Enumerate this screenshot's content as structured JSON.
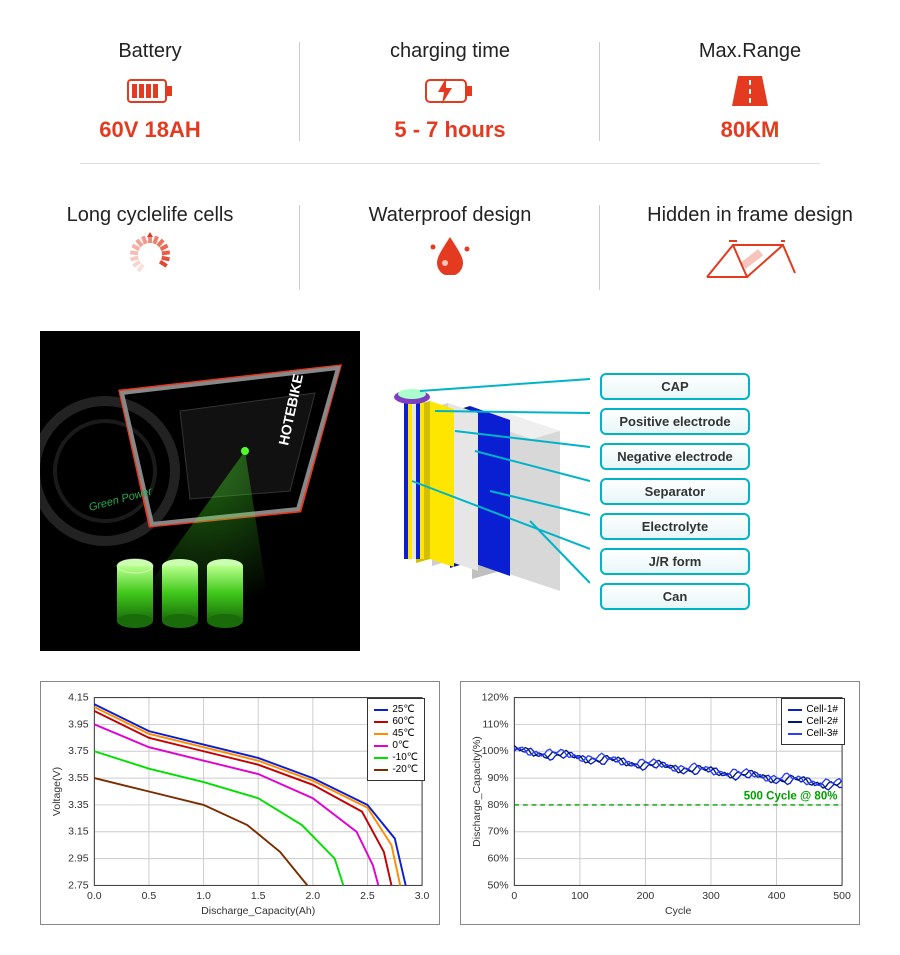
{
  "spec_top": [
    {
      "title": "Battery",
      "value": "60V 18AH",
      "icon": "battery"
    },
    {
      "title": "charging time",
      "value": "5 - 7 hours",
      "icon": "charge"
    },
    {
      "title": "Max.Range",
      "value": "80KM",
      "icon": "road"
    }
  ],
  "spec_bottom": [
    {
      "title": "Long cyclelife cells",
      "icon": "cycle"
    },
    {
      "title": "Waterproof design",
      "icon": "water"
    },
    {
      "title": "Hidden in frame design",
      "icon": "frame"
    }
  ],
  "accent": "#e43a1f",
  "layers": {
    "labels": [
      "CAP",
      "Positive electrode",
      "Negative electrode",
      "Separator",
      "Electrolyte",
      "J/R form",
      "Can"
    ],
    "label_border": "#00b4c8",
    "sheets": [
      {
        "color": "#ffe600"
      },
      {
        "color": "#e6e6e6"
      },
      {
        "color": "#0a1fd1"
      },
      {
        "color": "#cfcfcf"
      }
    ]
  },
  "bike": {
    "brand": "HOTEBIKE",
    "subtext": "Green Power",
    "frame_color": "#e43a1f",
    "glow": "#4eff2a"
  },
  "chart1": {
    "xlabel": "Discharge_Capacity(Ah)",
    "ylabel": "Voltage(V)",
    "xlim": [
      0,
      3.0
    ],
    "xtick_step": 0.5,
    "ylim": [
      2.75,
      4.15
    ],
    "yticks": [
      2.75,
      2.95,
      3.15,
      3.35,
      3.55,
      3.75,
      3.95,
      4.15
    ],
    "grid_color": "#cccccc",
    "series": [
      {
        "name": "25℃",
        "color": "#0a1fd1",
        "pts": [
          [
            0,
            4.1
          ],
          [
            0.5,
            3.9
          ],
          [
            1.0,
            3.8
          ],
          [
            1.5,
            3.7
          ],
          [
            2.0,
            3.55
          ],
          [
            2.5,
            3.35
          ],
          [
            2.75,
            3.1
          ],
          [
            2.85,
            2.75
          ]
        ]
      },
      {
        "name": "60℃",
        "color": "#c40000",
        "pts": [
          [
            0,
            4.05
          ],
          [
            0.5,
            3.85
          ],
          [
            1.0,
            3.75
          ],
          [
            1.5,
            3.65
          ],
          [
            2.0,
            3.5
          ],
          [
            2.45,
            3.3
          ],
          [
            2.65,
            3.0
          ],
          [
            2.72,
            2.75
          ]
        ]
      },
      {
        "name": "45℃",
        "color": "#ff8c00",
        "pts": [
          [
            0,
            4.08
          ],
          [
            0.5,
            3.88
          ],
          [
            1.0,
            3.78
          ],
          [
            1.5,
            3.68
          ],
          [
            2.0,
            3.53
          ],
          [
            2.5,
            3.33
          ],
          [
            2.72,
            3.05
          ],
          [
            2.8,
            2.75
          ]
        ]
      },
      {
        "name": "0℃",
        "color": "#e000d6",
        "pts": [
          [
            0,
            3.95
          ],
          [
            0.5,
            3.78
          ],
          [
            1.0,
            3.68
          ],
          [
            1.5,
            3.58
          ],
          [
            2.0,
            3.4
          ],
          [
            2.4,
            3.15
          ],
          [
            2.55,
            2.9
          ],
          [
            2.6,
            2.75
          ]
        ]
      },
      {
        "name": "-10℃",
        "color": "#00e000",
        "pts": [
          [
            0,
            3.75
          ],
          [
            0.5,
            3.62
          ],
          [
            1.0,
            3.52
          ],
          [
            1.5,
            3.4
          ],
          [
            1.9,
            3.2
          ],
          [
            2.2,
            2.95
          ],
          [
            2.28,
            2.75
          ]
        ]
      },
      {
        "name": "-20℃",
        "color": "#7a2e00",
        "pts": [
          [
            0,
            3.55
          ],
          [
            0.5,
            3.45
          ],
          [
            1.0,
            3.35
          ],
          [
            1.4,
            3.2
          ],
          [
            1.7,
            3.0
          ],
          [
            1.9,
            2.8
          ],
          [
            1.95,
            2.75
          ]
        ]
      }
    ]
  },
  "chart2": {
    "xlabel": "Cycle",
    "ylabel": "Discharge_Capacity(%)",
    "xlim": [
      0,
      500
    ],
    "xtick_step": 100,
    "ylim": [
      50,
      120
    ],
    "ytick_step": 10,
    "grid_color": "#cccccc",
    "annotation": "500 Cycle @ 80%",
    "annotation_color": "#00a000",
    "ref_line_y": 80,
    "series": [
      {
        "name": "Cell-1#",
        "color": "#0a1fd1"
      },
      {
        "name": "Cell-2#",
        "color": "#001a66"
      },
      {
        "name": "Cell-3#",
        "color": "#2a3fff"
      }
    ],
    "trace_band": {
      "start": 100,
      "end": 87,
      "noise": 2
    }
  }
}
